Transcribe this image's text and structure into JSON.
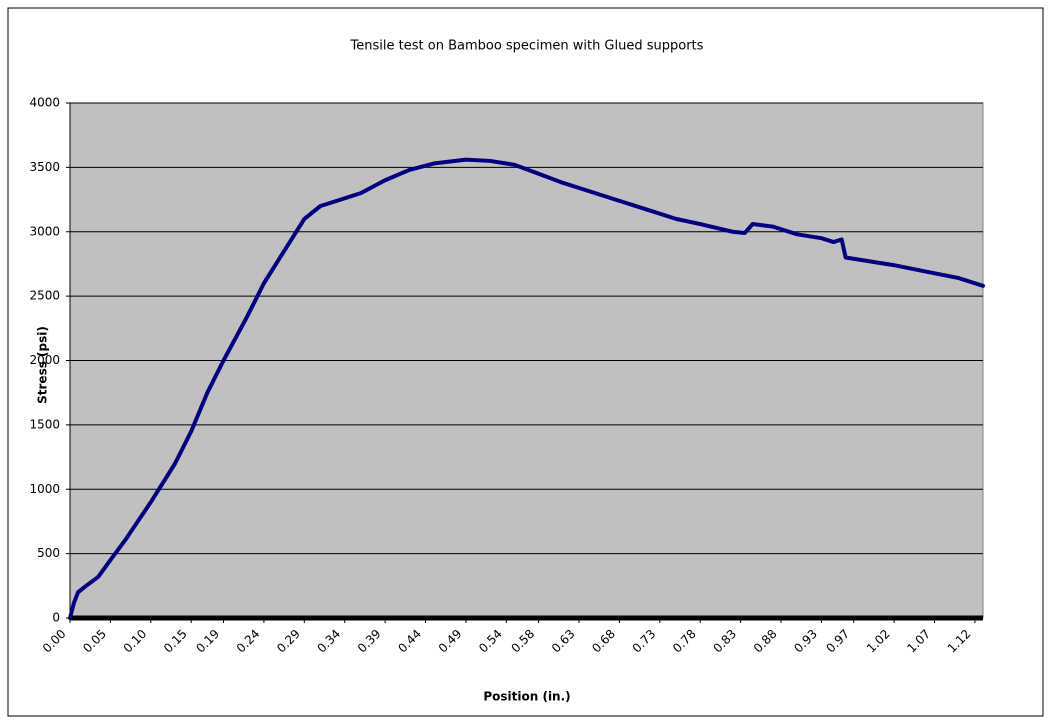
{
  "chart_data": {
    "type": "line",
    "title": "Tensile test on Bamboo specimen with Glued supports",
    "x_label": "Position (in.)",
    "y_label": "Stress (psi)",
    "xlim": [
      0,
      1.13
    ],
    "ylim": [
      0,
      4000
    ],
    "xticks": [
      {
        "value": 0,
        "label": "0.00"
      },
      0.05,
      {
        "value": 0.1,
        "label": "0.10"
      },
      0.15,
      0.19,
      0.24,
      0.29,
      0.34,
      0.39,
      0.44,
      0.49,
      0.54,
      0.58,
      0.63,
      0.68,
      0.73,
      0.78,
      0.83,
      0.88,
      0.93,
      0.97,
      1.02,
      1.07,
      1.12
    ],
    "yticks": [
      0,
      500,
      1000,
      1500,
      2000,
      2500,
      3000,
      3500,
      4000
    ],
    "grid": true,
    "series": [
      {
        "name": "Stress",
        "color": "#000080",
        "x": [
          0,
          0.005,
          0.01,
          0.02,
          0.035,
          0.05,
          0.07,
          0.1,
          0.13,
          0.15,
          0.17,
          0.19,
          0.22,
          0.24,
          0.27,
          0.29,
          0.31,
          0.33,
          0.36,
          0.39,
          0.42,
          0.45,
          0.49,
          0.52,
          0.55,
          0.58,
          0.61,
          0.65,
          0.68,
          0.71,
          0.75,
          0.78,
          0.82,
          0.835,
          0.845,
          0.87,
          0.9,
          0.93,
          0.945,
          0.955,
          0.96,
          0.99,
          1.02,
          1.06,
          1.1,
          1.13
        ],
        "values": [
          0,
          120,
          200,
          250,
          320,
          450,
          620,
          900,
          1200,
          1450,
          1750,
          2000,
          2350,
          2600,
          2900,
          3100,
          3200,
          3240,
          3300,
          3400,
          3480,
          3530,
          3560,
          3550,
          3520,
          3450,
          3380,
          3300,
          3240,
          3180,
          3100,
          3060,
          3000,
          2990,
          3060,
          3040,
          2980,
          2950,
          2920,
          2940,
          2800,
          2770,
          2740,
          2690,
          2640,
          2580
        ]
      }
    ]
  }
}
